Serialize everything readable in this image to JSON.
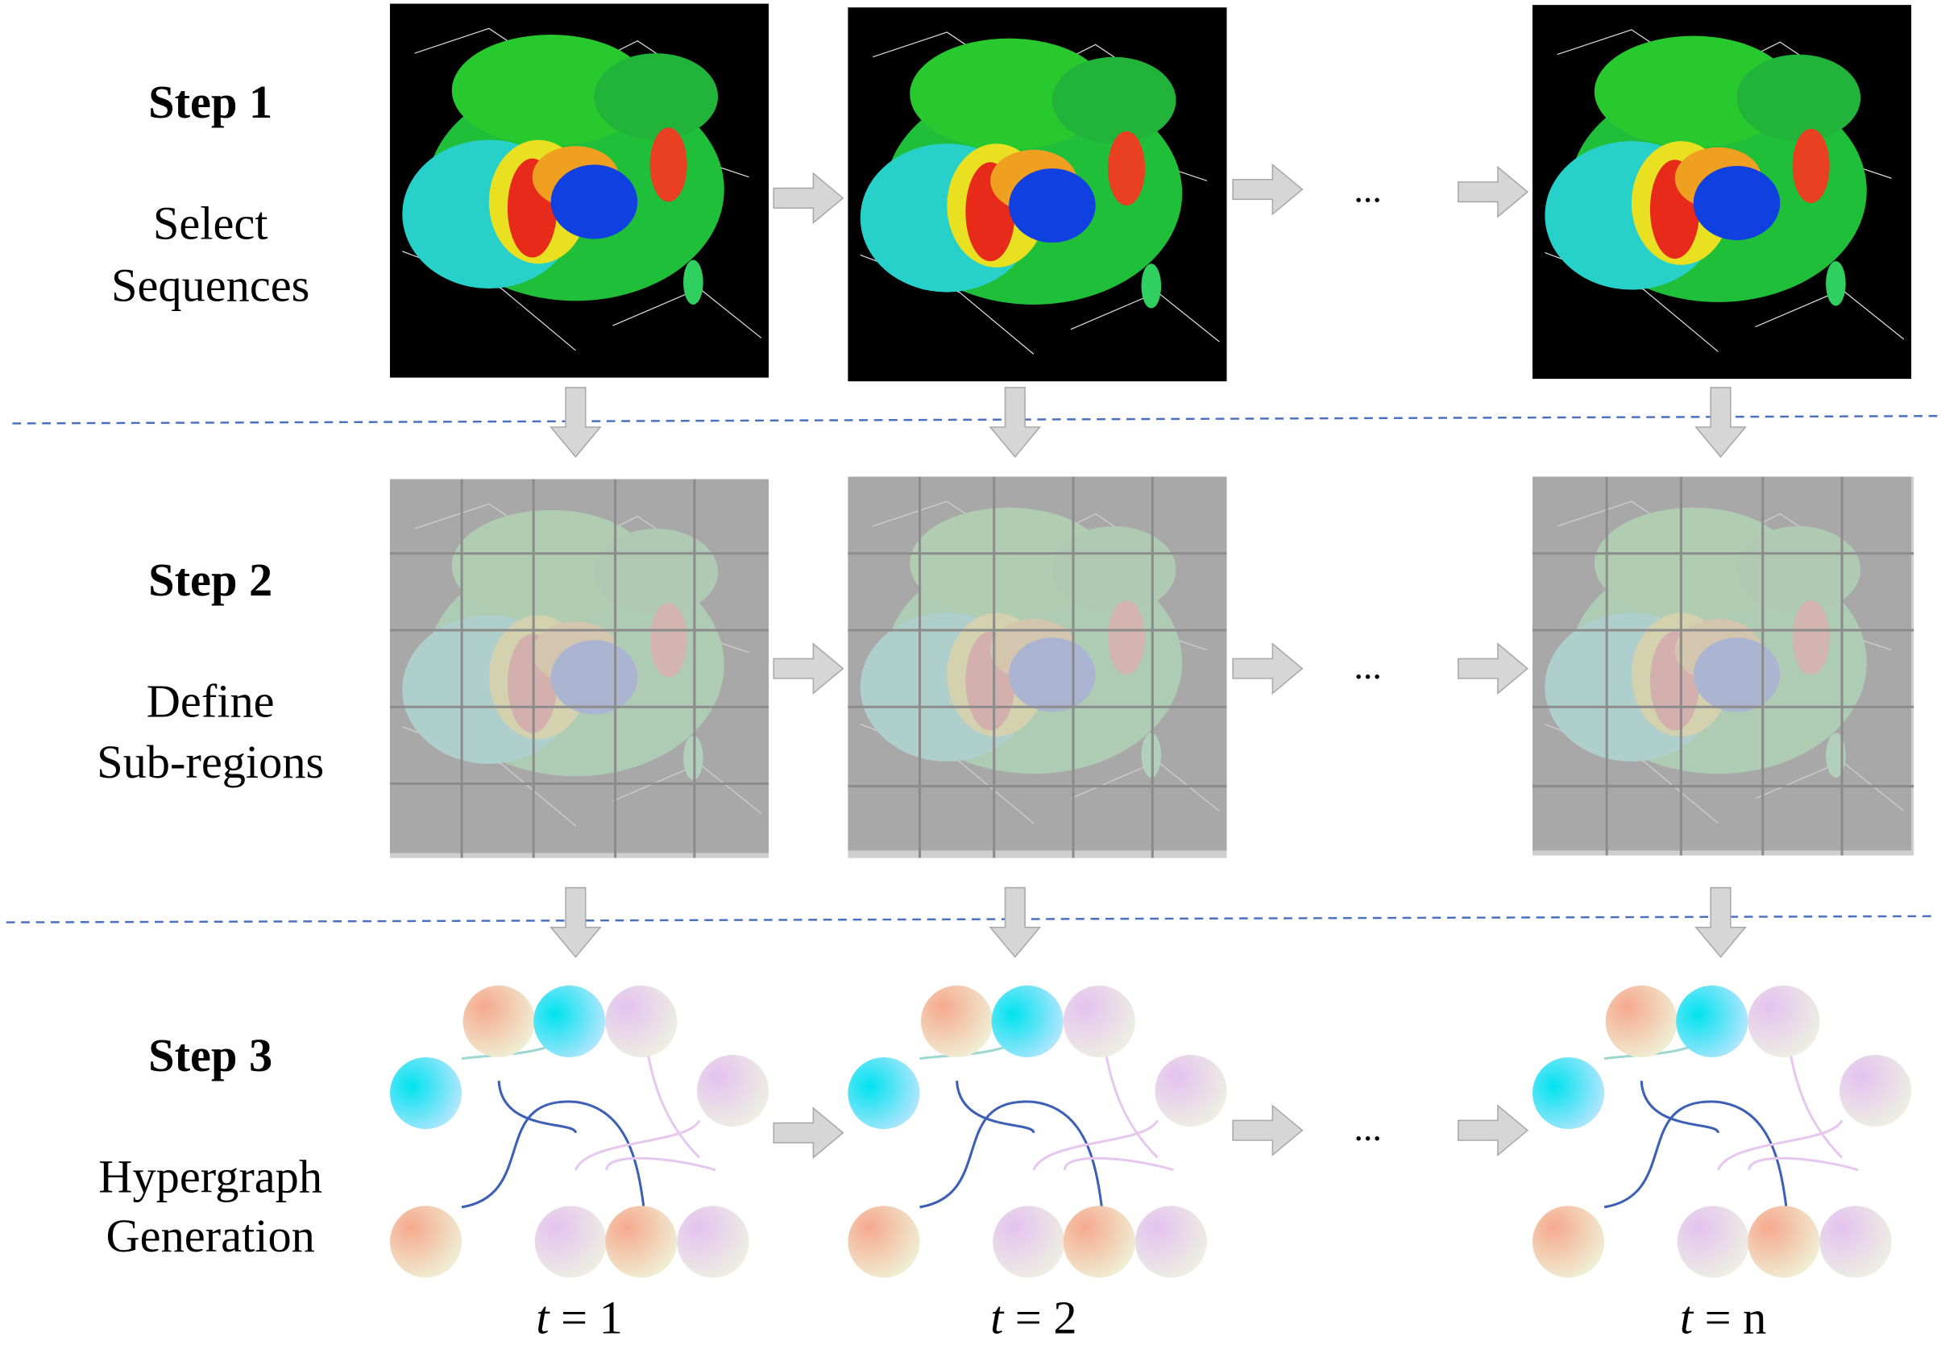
{
  "steps": [
    {
      "title": "Step 1",
      "description": [
        "Select",
        "Sequences"
      ]
    },
    {
      "title": "Step 2",
      "description": [
        "Define",
        "Sub-regions"
      ]
    },
    {
      "title": "Step 3",
      "description": [
        "Hypergraph",
        "Generation"
      ]
    }
  ],
  "ellipsis": "...",
  "time_labels": [
    {
      "symbol": "t",
      "value": "= 1"
    },
    {
      "symbol": "t",
      "value": "= 2"
    },
    {
      "symbol": "t",
      "value": "= n"
    }
  ]
}
